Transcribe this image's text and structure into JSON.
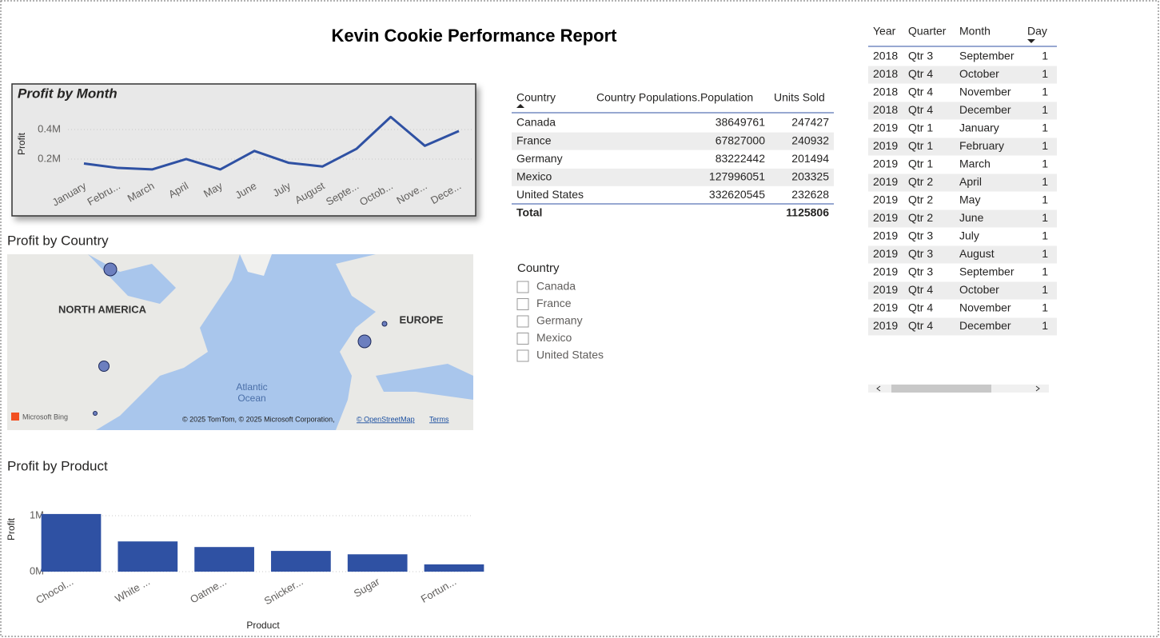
{
  "title": "Kevin Cookie Performance Report",
  "chart_data": [
    {
      "type": "line",
      "title": "Profit by Month",
      "ylabel": "Profit",
      "color": "#2f51a3",
      "categories": [
        "January",
        "Febru...",
        "March",
        "April",
        "May",
        "June",
        "July",
        "August",
        "Septe...",
        "Octob...",
        "Nove...",
        "Dece..."
      ],
      "values": [
        170000,
        140000,
        130000,
        200000,
        130000,
        255000,
        175000,
        150000,
        270000,
        485000,
        290000,
        390000
      ],
      "ylim": [
        90000,
        500000
      ],
      "yticks": [
        {
          "value": 200000,
          "label": "0.2M"
        },
        {
          "value": 400000,
          "label": "0.4M"
        }
      ],
      "grid": true
    },
    {
      "type": "bar",
      "title": "Profit by Product",
      "xlabel": "Product",
      "ylabel": "Profit",
      "color": "#2f51a3",
      "categories": [
        "Chocol...",
        "White ...",
        "Oatme...",
        "Snicker...",
        "Sugar",
        "Fortun..."
      ],
      "values": [
        1030000,
        540000,
        440000,
        370000,
        310000,
        130000
      ],
      "ylim": [
        0,
        1050000
      ],
      "yticks": [
        {
          "value": 0,
          "label": "0M"
        },
        {
          "value": 1000000,
          "label": "1M"
        }
      ],
      "grid": true
    }
  ],
  "map": {
    "title": "Profit by Country",
    "labels": [
      "NORTH AMERICA",
      "EUROPE",
      "Atlantic",
      "Ocean"
    ],
    "provider": "Microsoft Bing",
    "attribution": "© 2025 TomTom, © 2025 Microsoft Corporation,",
    "osm": "© OpenStreetMap",
    "terms": "Terms"
  },
  "table": {
    "columns": [
      "Country",
      "Country Populations.Population",
      "Units Sold"
    ],
    "rows": [
      [
        "Canada",
        "38649761",
        "247427"
      ],
      [
        "France",
        "67827000",
        "240932"
      ],
      [
        "Germany",
        "83222442",
        "201494"
      ],
      [
        "Mexico",
        "127996051",
        "203325"
      ],
      [
        "United States",
        "332620545",
        "232628"
      ]
    ],
    "total": {
      "label": "Total",
      "units_sold": "1125806"
    }
  },
  "slicer": {
    "title": "Country",
    "items": [
      "Canada",
      "France",
      "Germany",
      "Mexico",
      "United States"
    ]
  },
  "date_table": {
    "columns": [
      "Year",
      "Quarter",
      "Month",
      "Day"
    ],
    "rows": [
      [
        "2018",
        "Qtr 3",
        "September",
        "1"
      ],
      [
        "2018",
        "Qtr 4",
        "October",
        "1"
      ],
      [
        "2018",
        "Qtr 4",
        "November",
        "1"
      ],
      [
        "2018",
        "Qtr 4",
        "December",
        "1"
      ],
      [
        "2019",
        "Qtr 1",
        "January",
        "1"
      ],
      [
        "2019",
        "Qtr 1",
        "February",
        "1"
      ],
      [
        "2019",
        "Qtr 1",
        "March",
        "1"
      ],
      [
        "2019",
        "Qtr 2",
        "April",
        "1"
      ],
      [
        "2019",
        "Qtr 2",
        "May",
        "1"
      ],
      [
        "2019",
        "Qtr 2",
        "June",
        "1"
      ],
      [
        "2019",
        "Qtr 3",
        "July",
        "1"
      ],
      [
        "2019",
        "Qtr 3",
        "August",
        "1"
      ],
      [
        "2019",
        "Qtr 3",
        "September",
        "1"
      ],
      [
        "2019",
        "Qtr 4",
        "October",
        "1"
      ],
      [
        "2019",
        "Qtr 4",
        "November",
        "1"
      ],
      [
        "2019",
        "Qtr 4",
        "December",
        "1"
      ]
    ]
  }
}
